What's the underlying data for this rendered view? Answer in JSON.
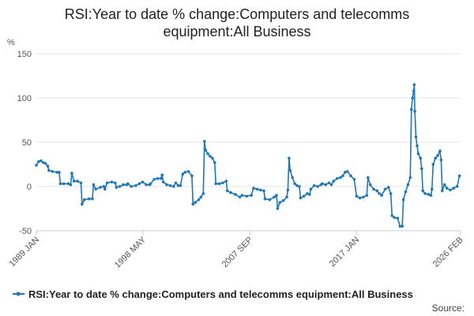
{
  "chart_data": {
    "type": "line",
    "title": "RSI:Year to date % change:Computers and telecomms equipment:All Business",
    "title_lines": [
      "RSI:Year to date % change:Computers and telecomms",
      "equipment:All Business"
    ],
    "ylabel": "%",
    "xlabel": "",
    "ylim": [
      -50,
      150
    ],
    "y_ticks": [
      -50,
      0,
      50,
      100,
      150
    ],
    "x_range": [
      1989.0,
      2026.1
    ],
    "x_ticks": [
      {
        "label": "1989 JAN",
        "value": 1989.0
      },
      {
        "label": "1998 MAY",
        "value": 1998.33
      },
      {
        "label": "2007 SEP",
        "value": 2007.67
      },
      {
        "label": "2017 JAN",
        "value": 2017.0
      },
      {
        "label": "2026 FEB",
        "value": 2026.08
      }
    ],
    "grid": "horizontal",
    "legend_position": "bottom",
    "color": "#1f77b4",
    "series": [
      {
        "name": "RSI:Year to date % change:Computers and telecomms equipment:All Business",
        "color": "#1f77b4",
        "points": [
          [
            1989.0,
            24
          ],
          [
            1989.2,
            28
          ],
          [
            1989.4,
            29
          ],
          [
            1989.6,
            27
          ],
          [
            1989.8,
            26
          ],
          [
            1990.0,
            23
          ],
          [
            1990.1,
            18
          ],
          [
            1990.4,
            17
          ],
          [
            1990.8,
            16
          ],
          [
            1991.0,
            16
          ],
          [
            1991.1,
            3
          ],
          [
            1991.4,
            3
          ],
          [
            1991.8,
            3
          ],
          [
            1992.0,
            2
          ],
          [
            1992.1,
            15
          ],
          [
            1992.3,
            6
          ],
          [
            1992.6,
            6
          ],
          [
            1992.9,
            4
          ],
          [
            1993.0,
            -20
          ],
          [
            1993.2,
            -15
          ],
          [
            1993.6,
            -14
          ],
          [
            1993.9,
            -14
          ],
          [
            1994.0,
            2
          ],
          [
            1994.2,
            -3
          ],
          [
            1994.6,
            -1
          ],
          [
            1994.9,
            0
          ],
          [
            1995.0,
            -3
          ],
          [
            1995.2,
            4
          ],
          [
            1995.6,
            5
          ],
          [
            1995.9,
            4
          ],
          [
            1996.0,
            -1
          ],
          [
            1996.3,
            0
          ],
          [
            1996.6,
            2
          ],
          [
            1996.9,
            2
          ],
          [
            1997.0,
            3
          ],
          [
            1997.3,
            0
          ],
          [
            1997.7,
            1
          ],
          [
            1998.0,
            3
          ],
          [
            1998.3,
            5
          ],
          [
            1998.6,
            2
          ],
          [
            1998.9,
            2
          ],
          [
            1999.0,
            3
          ],
          [
            1999.3,
            8
          ],
          [
            1999.6,
            9
          ],
          [
            1999.9,
            9
          ],
          [
            2000.0,
            13
          ],
          [
            2000.1,
            5
          ],
          [
            2000.4,
            2
          ],
          [
            2000.7,
            1
          ],
          [
            2001.0,
            0
          ],
          [
            2001.2,
            4
          ],
          [
            2001.4,
            1
          ],
          [
            2001.6,
            1
          ],
          [
            2001.8,
            14
          ],
          [
            2002.0,
            16
          ],
          [
            2002.3,
            17
          ],
          [
            2002.6,
            12
          ],
          [
            2002.7,
            -20
          ],
          [
            2002.9,
            -18
          ],
          [
            2003.2,
            -15
          ],
          [
            2003.4,
            -12
          ],
          [
            2003.6,
            -8
          ],
          [
            2003.7,
            51
          ],
          [
            2003.8,
            41
          ],
          [
            2004.0,
            37
          ],
          [
            2004.2,
            34
          ],
          [
            2004.4,
            32
          ],
          [
            2004.6,
            27
          ],
          [
            2004.7,
            3
          ],
          [
            2005.0,
            3
          ],
          [
            2005.3,
            4
          ],
          [
            2005.6,
            6
          ],
          [
            2005.7,
            -5
          ],
          [
            2006.0,
            -7
          ],
          [
            2006.4,
            -9
          ],
          [
            2006.8,
            -12
          ],
          [
            2007.0,
            -10
          ],
          [
            2007.4,
            -11
          ],
          [
            2007.8,
            -10
          ],
          [
            2008.0,
            -2
          ],
          [
            2008.3,
            -3
          ],
          [
            2008.6,
            -4
          ],
          [
            2008.9,
            -5
          ],
          [
            2009.0,
            -14
          ],
          [
            2009.4,
            -15
          ],
          [
            2009.8,
            -12
          ],
          [
            2010.0,
            -10
          ],
          [
            2010.1,
            -25
          ],
          [
            2010.3,
            -18
          ],
          [
            2010.6,
            -16
          ],
          [
            2010.9,
            -12
          ],
          [
            2011.0,
            -4
          ],
          [
            2011.1,
            32
          ],
          [
            2011.2,
            18
          ],
          [
            2011.4,
            10
          ],
          [
            2011.6,
            3
          ],
          [
            2011.8,
            1
          ],
          [
            2012.0,
            0
          ],
          [
            2012.1,
            -13
          ],
          [
            2012.4,
            -11
          ],
          [
            2012.7,
            -8
          ],
          [
            2012.9,
            -9
          ],
          [
            2013.0,
            -3
          ],
          [
            2013.3,
            1
          ],
          [
            2013.6,
            0
          ],
          [
            2013.9,
            2
          ],
          [
            2014.0,
            3
          ],
          [
            2014.3,
            2
          ],
          [
            2014.6,
            4
          ],
          [
            2014.8,
            2
          ],
          [
            2015.0,
            6
          ],
          [
            2015.3,
            9
          ],
          [
            2015.6,
            10
          ],
          [
            2015.8,
            12
          ],
          [
            2016.0,
            16
          ],
          [
            2016.2,
            17
          ],
          [
            2016.5,
            12
          ],
          [
            2016.8,
            8
          ],
          [
            2017.0,
            -11
          ],
          [
            2017.3,
            -13
          ],
          [
            2017.6,
            -12
          ],
          [
            2017.9,
            -10
          ],
          [
            2018.0,
            10
          ],
          [
            2018.2,
            2
          ],
          [
            2018.5,
            -3
          ],
          [
            2018.8,
            -5
          ],
          [
            2019.0,
            -8
          ],
          [
            2019.2,
            -10
          ],
          [
            2019.5,
            -3
          ],
          [
            2019.8,
            -1
          ],
          [
            2020.0,
            -8
          ],
          [
            2020.1,
            -33
          ],
          [
            2020.3,
            -35
          ],
          [
            2020.6,
            -36
          ],
          [
            2020.8,
            -45
          ],
          [
            2021.0,
            -45
          ],
          [
            2021.1,
            -15
          ],
          [
            2021.3,
            -6
          ],
          [
            2021.5,
            2
          ],
          [
            2021.7,
            10
          ],
          [
            2021.8,
            87
          ],
          [
            2021.9,
            100
          ],
          [
            2022.0,
            108
          ],
          [
            2022.05,
            115
          ],
          [
            2022.1,
            85
          ],
          [
            2022.2,
            56
          ],
          [
            2022.3,
            46
          ],
          [
            2022.4,
            37
          ],
          [
            2022.6,
            32
          ],
          [
            2022.7,
            20
          ],
          [
            2022.8,
            -5
          ],
          [
            2023.0,
            -8
          ],
          [
            2023.3,
            -9
          ],
          [
            2023.5,
            -10
          ],
          [
            2023.6,
            -3
          ],
          [
            2023.7,
            25
          ],
          [
            2023.9,
            32
          ],
          [
            2024.1,
            35
          ],
          [
            2024.3,
            40
          ],
          [
            2024.4,
            30
          ],
          [
            2024.5,
            -5
          ],
          [
            2024.7,
            2
          ],
          [
            2024.9,
            -2
          ],
          [
            2025.2,
            -4
          ],
          [
            2025.5,
            -2
          ],
          [
            2025.8,
            0
          ],
          [
            2026.0,
            12
          ]
        ]
      }
    ],
    "source_label": "Source:"
  }
}
